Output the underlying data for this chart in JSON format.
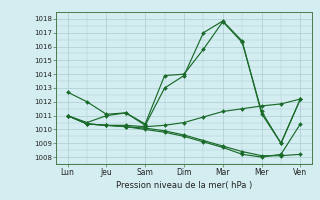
{
  "title": "",
  "xlabel": "Pression niveau de la mer( hPa )",
  "bg_color": "#d4edf0",
  "grid_color": "#aacdd4",
  "line_color": "#1a6b2a",
  "ylim": [
    1007.5,
    1018.5
  ],
  "yticks": [
    1008,
    1009,
    1010,
    1011,
    1012,
    1013,
    1014,
    1015,
    1016,
    1017,
    1018
  ],
  "xtick_labels": [
    "Lun",
    "Jeu",
    "Sam",
    "Dim",
    "Mar",
    "Mer",
    "Ven"
  ],
  "xtick_positions": [
    0,
    1,
    2,
    3,
    4,
    5,
    6
  ],
  "series": [
    {
      "x": [
        0,
        0.5,
        1,
        1.5,
        2,
        2.5,
        3,
        3.5,
        4,
        4.5,
        5,
        5.5,
        6
      ],
      "y": [
        1012.7,
        1012.0,
        1011.1,
        1011.2,
        1010.4,
        1013.9,
        1014.0,
        1015.8,
        1017.8,
        1016.3,
        1011.3,
        1009.0,
        1012.2
      ]
    },
    {
      "x": [
        0,
        0.5,
        1,
        1.5,
        2,
        2.5,
        3,
        3.5,
        4,
        4.5,
        5,
        5.5,
        6
      ],
      "y": [
        1011.0,
        1010.5,
        1011.0,
        1011.2,
        1010.3,
        1013.0,
        1013.9,
        1017.0,
        1017.85,
        1016.4,
        1011.15,
        1009.0,
        1012.2
      ]
    },
    {
      "x": [
        0,
        0.5,
        1,
        1.5,
        2,
        2.5,
        3,
        3.5,
        4,
        4.5,
        5,
        5.5,
        6
      ],
      "y": [
        1011.0,
        1010.4,
        1010.3,
        1010.3,
        1010.2,
        1010.3,
        1010.5,
        1010.9,
        1011.3,
        1011.5,
        1011.7,
        1011.85,
        1012.2
      ]
    },
    {
      "x": [
        0,
        0.5,
        1,
        1.5,
        2,
        2.5,
        3,
        3.5,
        4,
        4.5,
        5,
        5.5,
        6
      ],
      "y": [
        1011.0,
        1010.4,
        1010.3,
        1010.2,
        1010.1,
        1009.9,
        1009.6,
        1009.2,
        1008.8,
        1008.4,
        1008.1,
        1008.1,
        1008.2
      ]
    },
    {
      "x": [
        0,
        0.5,
        1,
        1.5,
        2,
        2.5,
        3,
        3.5,
        4,
        4.5,
        5,
        5.5,
        6
      ],
      "y": [
        1011.0,
        1010.4,
        1010.3,
        1010.2,
        1010.0,
        1009.8,
        1009.5,
        1009.1,
        1008.7,
        1008.2,
        1008.0,
        1008.2,
        1010.4
      ]
    }
  ]
}
